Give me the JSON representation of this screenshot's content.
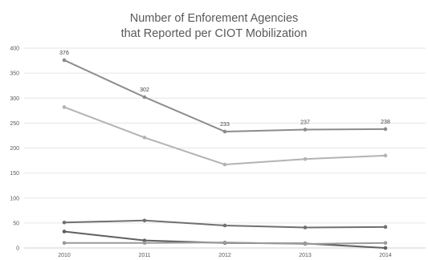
{
  "chart_data": {
    "type": "line",
    "title_lines": [
      "Number of Enforement Agencies",
      "that Reported per CIOT Mobilization"
    ],
    "xlabel": "",
    "ylabel": "",
    "categories": [
      "2010",
      "2011",
      "2012",
      "2013",
      "2014"
    ],
    "ylim": [
      0,
      400
    ],
    "yticks": [
      0,
      50,
      100,
      150,
      200,
      250,
      300,
      350,
      400
    ],
    "grid": true,
    "legend": "none",
    "series": [
      {
        "values": [
          376,
          302,
          233,
          237,
          238
        ],
        "color": "#8c8c8c",
        "data_labels": [
          "376",
          "302",
          "233",
          "237",
          "238"
        ]
      },
      {
        "values": [
          282,
          221,
          167,
          178,
          185
        ],
        "color": "#b3b3b3"
      },
      {
        "values": [
          51,
          55,
          45,
          41,
          42
        ],
        "color": "#707070"
      },
      {
        "values": [
          33,
          15,
          10,
          9,
          0
        ],
        "color": "#606060"
      },
      {
        "values": [
          10,
          10,
          11,
          8,
          10
        ],
        "color": "#9a9a9a"
      }
    ]
  }
}
